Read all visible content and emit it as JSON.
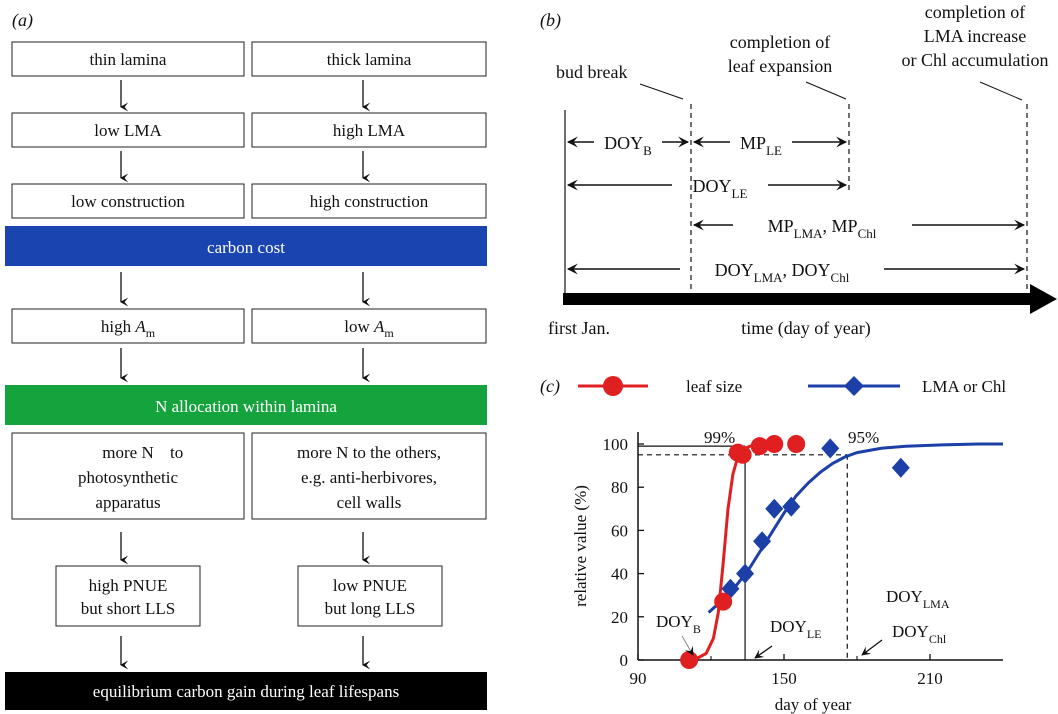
{
  "panel_a": {
    "label": "(a)",
    "left_col": [
      "thin lamina",
      "low LMA",
      "low construction"
    ],
    "right_col": [
      "thick lamina",
      "high LMA",
      "high construction"
    ],
    "carbon_cost": "carbon cost",
    "am_left_prefix": "high ",
    "am_left_A": "A",
    "am_left_sub": "m",
    "am_right_prefix": "low ",
    "am_right_A": "A",
    "am_right_sub": "m",
    "n_allocation": "N allocation within lamina",
    "more_n_left": [
      "more N",
      "to",
      "photosynthetic",
      "apparatus"
    ],
    "more_n_right": [
      "more N to the others,",
      "e.g. anti-herbivores,",
      "cell walls"
    ],
    "pnue_left": [
      "high PNUE",
      "but short LLS"
    ],
    "pnue_right": [
      "low PNUE",
      "but long LLS"
    ],
    "equilibrium": "equilibrium carbon gain during leaf lifespans",
    "colors": {
      "carbon_cost": "#1a45b0",
      "n_allocation": "#14a33c",
      "equilibrium": "#000000"
    }
  },
  "panel_b": {
    "label": "(b)",
    "bud_break": "bud break",
    "leaf_expansion": [
      "completion of",
      "leaf expansion"
    ],
    "lma_increase": [
      "completion of",
      "LMA increase",
      "or Chl accumulation"
    ],
    "doyb_main": "DOY",
    "doyb_sub": "B",
    "mple_main": "MP",
    "mple_sub": "LE",
    "doyle_main": "DOY",
    "doyle_sub": "LE",
    "mp_lma_main": "MP",
    "mp_lma_sub": "LMA",
    "mp_sep": ", ",
    "mp_chl_main": "MP",
    "mp_chl_sub": "Chl",
    "doy_lma_main": "DOY",
    "doy_lma_sub": "LMA",
    "doy_sep": ", ",
    "doy_chl_main": "DOY",
    "doy_chl_sub": "Chl",
    "first_jan": "first Jan.",
    "time_label": "time (day of year)"
  },
  "panel_c": {
    "label": "(c)",
    "pct99": "99%",
    "pct95": "95%",
    "doyb_main": "DOY",
    "doyb_sub": "B",
    "doyle_main": "DOY",
    "doyle_sub": "LE",
    "doylma_main": "DOY",
    "doylma_sub": "LMA",
    "doychl_main": "DOY",
    "doychl_sub": "Chl"
  },
  "chart_data": {
    "type": "scatter",
    "xlabel": "day of year",
    "ylabel": "relative value (%)",
    "xlim": [
      90,
      240
    ],
    "ylim": [
      0,
      100
    ],
    "xticks": [
      90,
      150,
      210
    ],
    "yticks": [
      0,
      20,
      40,
      60,
      80,
      100
    ],
    "grid": false,
    "legend_position": "top",
    "series": [
      {
        "name": "leaf size",
        "color": "#e02020",
        "marker": "circle",
        "points": [
          [
            111,
            0
          ],
          [
            125,
            27
          ],
          [
            131,
            96
          ],
          [
            133,
            95
          ],
          [
            140,
            99
          ],
          [
            146,
            100
          ],
          [
            155,
            100
          ]
        ],
        "fit": [
          [
            113,
            0
          ],
          [
            118,
            3
          ],
          [
            121,
            10
          ],
          [
            123,
            22
          ],
          [
            125,
            45
          ],
          [
            127,
            70
          ],
          [
            129,
            86
          ],
          [
            131,
            94
          ],
          [
            133,
            97.5
          ],
          [
            136,
            99
          ],
          [
            140,
            99.6
          ],
          [
            146,
            99.8
          ]
        ]
      },
      {
        "name": "LMA or Chl",
        "color": "#1c3fa8",
        "marker": "diamond",
        "points": [
          [
            128,
            33
          ],
          [
            134,
            40
          ],
          [
            141,
            55
          ],
          [
            146,
            70
          ],
          [
            153,
            71
          ],
          [
            169,
            98
          ],
          [
            198,
            89
          ]
        ],
        "fit": [
          [
            119,
            22
          ],
          [
            125,
            28
          ],
          [
            130,
            34
          ],
          [
            135,
            41
          ],
          [
            140,
            50
          ],
          [
            145,
            59
          ],
          [
            150,
            68
          ],
          [
            155,
            76
          ],
          [
            160,
            82
          ],
          [
            165,
            87
          ],
          [
            170,
            91
          ],
          [
            175,
            94
          ],
          [
            180,
            96
          ],
          [
            190,
            98
          ],
          [
            200,
            99
          ],
          [
            215,
            99.6
          ],
          [
            230,
            100
          ],
          [
            240,
            100
          ]
        ]
      }
    ],
    "reference_lines": {
      "doy_le": 134,
      "doy_lma": 176,
      "y99": 99,
      "y95": 95
    }
  }
}
